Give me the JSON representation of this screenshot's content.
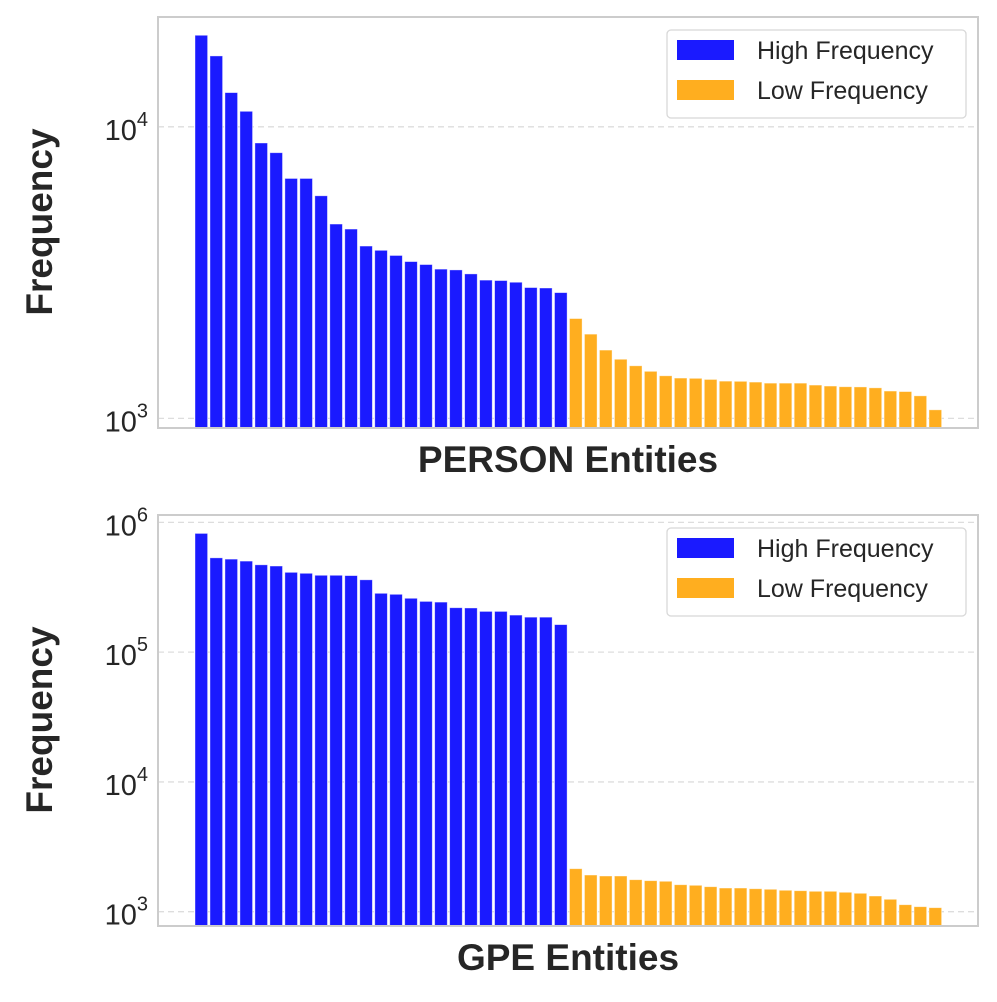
{
  "colors": {
    "high": "#1a1aff",
    "low": "#ffae1f",
    "grid": "#dddddd",
    "frame": "#cccccc"
  },
  "chart_data": [
    {
      "type": "bar",
      "xlabel": "PERSON Entities",
      "ylabel": "Frequency",
      "yscale": "log",
      "ylim": [
        927,
        23800
      ],
      "yticks": [
        {
          "value": 1000,
          "base": "10",
          "exp": "3"
        },
        {
          "value": 10000,
          "base": "10",
          "exp": "4"
        }
      ],
      "grid": "y-dashed",
      "legend": {
        "placement": "top-right",
        "entries": [
          "High Frequency",
          "Low Frequency"
        ]
      },
      "series": [
        {
          "name": "High Frequency",
          "values": [
            20600,
            17500,
            13100,
            11300,
            8800,
            8150,
            6650,
            6650,
            5800,
            4640,
            4460,
            3900,
            3770,
            3620,
            3450,
            3370,
            3250,
            3230,
            3130,
            2980,
            2970,
            2930,
            2810,
            2800,
            2700
          ]
        },
        {
          "name": "Low Frequency",
          "values": [
            2200,
            1945,
            1715,
            1595,
            1515,
            1450,
            1400,
            1375,
            1372,
            1360,
            1342,
            1340,
            1332,
            1321,
            1321,
            1321,
            1301,
            1291,
            1284,
            1282,
            1273,
            1241,
            1236,
            1195,
            1070
          ]
        }
      ]
    },
    {
      "type": "bar",
      "xlabel": "GPE Entities",
      "ylabel": "Frequency",
      "yscale": "log",
      "ylim": [
        776,
        1140000
      ],
      "yticks": [
        {
          "value": 1000,
          "base": "10",
          "exp": "3"
        },
        {
          "value": 10000,
          "base": "10",
          "exp": "4"
        },
        {
          "value": 100000,
          "base": "10",
          "exp": "5"
        },
        {
          "value": 1000000,
          "base": "10",
          "exp": "6"
        }
      ],
      "grid": "y-dashed",
      "legend": {
        "placement": "top-right",
        "entries": [
          "High Frequency",
          "Low Frequency"
        ]
      },
      "series": [
        {
          "name": "High Frequency",
          "values": [
            822000,
            533000,
            521000,
            503000,
            471000,
            461000,
            412000,
            405000,
            391000,
            391000,
            389000,
            361000,
            284000,
            279000,
            260000,
            246000,
            243000,
            220000,
            219000,
            206000,
            206000,
            193000,
            186000,
            186000,
            163000
          ]
        },
        {
          "name": "Low Frequency",
          "values": [
            2145,
            1917,
            1884,
            1884,
            1764,
            1734,
            1715,
            1614,
            1597,
            1558,
            1522,
            1522,
            1503,
            1488,
            1462,
            1451,
            1436,
            1436,
            1411,
            1386,
            1321,
            1246,
            1132,
            1093,
            1074
          ]
        }
      ]
    }
  ]
}
